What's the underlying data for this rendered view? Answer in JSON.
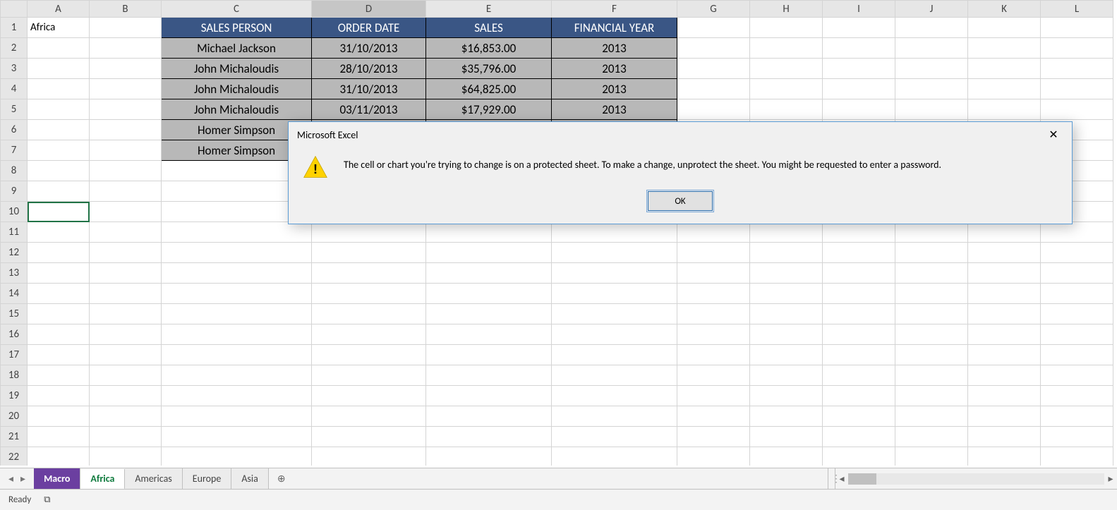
{
  "columns": [
    "A",
    "B",
    "C",
    "D",
    "E",
    "F",
    "G",
    "H",
    "I",
    "J",
    "K",
    "L"
  ],
  "selected_col": "D",
  "rows": 22,
  "active_row": 10,
  "a1_value": "Africa",
  "table": {
    "headers": {
      "C": "SALES PERSON",
      "D": "ORDER DATE",
      "E": "SALES",
      "F": "FINANCIAL YEAR"
    },
    "header_bg": "#3a5685",
    "header_fg": "#ffffff",
    "data_bg": "#b8b8b8",
    "rows": [
      {
        "C": "Michael Jackson",
        "D": "31/10/2013",
        "E": "$16,853.00",
        "F": "2013"
      },
      {
        "C": "John Michaloudis",
        "D": "28/10/2013",
        "E": "$35,796.00",
        "F": "2013"
      },
      {
        "C": "John Michaloudis",
        "D": "31/10/2013",
        "E": "$64,825.00",
        "F": "2013"
      },
      {
        "C": "John Michaloudis",
        "D": "03/11/2013",
        "E": "$17,929.00",
        "F": "2013"
      },
      {
        "C": "Homer Simpson",
        "D": "",
        "E": "",
        "F": ""
      },
      {
        "C": "Homer Simpson",
        "D": "",
        "E": "",
        "F": ""
      }
    ]
  },
  "tabs": {
    "nav_prev": "◂",
    "nav_next": "▸",
    "items": [
      {
        "label": "Macro",
        "class": "macro"
      },
      {
        "label": "Africa",
        "class": "active"
      },
      {
        "label": "Americas",
        "class": ""
      },
      {
        "label": "Europe",
        "class": ""
      },
      {
        "label": "Asia",
        "class": ""
      }
    ],
    "add": "⊕"
  },
  "status": {
    "ready": "Ready",
    "rec_icon": "⧉"
  },
  "dialog": {
    "title": "Microsoft Excel",
    "close": "✕",
    "message": "The cell or chart you're trying to change is on a protected sheet. To make a change, unprotect the sheet. You might be requested to enter a password.",
    "ok": "OK",
    "warn_bg": "#ffd200",
    "warn_border": "#c9a800"
  }
}
